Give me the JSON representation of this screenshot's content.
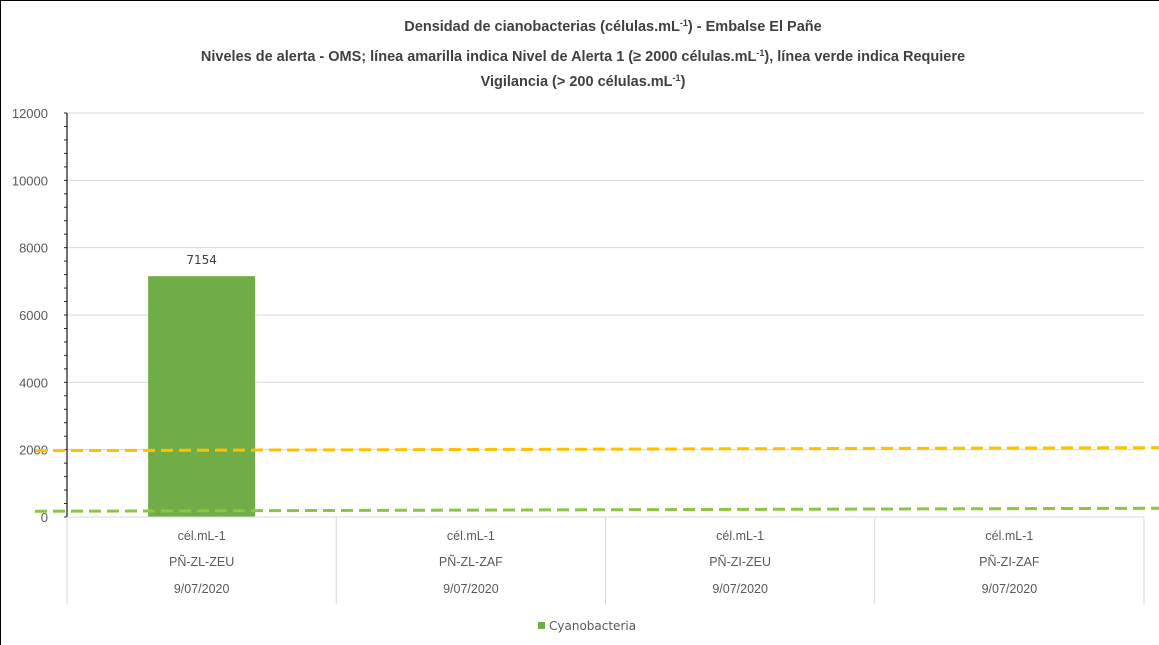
{
  "chart_data": {
    "type": "bar",
    "title": {
      "line1": {
        "main": "Densidad de cianobacterias (células.mL",
        "sup": "-1",
        "tail": ") - Embalse El Pañe"
      },
      "line2": {
        "main": "Niveles de alerta - OMS; línea amarilla indica Nivel de Alerta 1 (≥ 2000  células.mL",
        "sup": "-1",
        "tail": "), línea verde indica Requiere"
      },
      "line3": {
        "main": "Vigilancia (> 200 células.mL",
        "sup": "-1",
        "tail": ")"
      }
    },
    "categories": [
      {
        "unit": "cél.mL-1",
        "site": "PÑ-ZL-ZEU",
        "date": "9/07/2020"
      },
      {
        "unit": "cél.mL-1",
        "site": "PÑ-ZL-ZAF",
        "date": "9/07/2020"
      },
      {
        "unit": "cél.mL-1",
        "site": "PÑ-ZI-ZEU",
        "date": "9/07/2020"
      },
      {
        "unit": "cél.mL-1",
        "site": "PÑ-ZI-ZAF",
        "date": "9/07/2020"
      }
    ],
    "series": [
      {
        "name": "Cyanobacteria",
        "color": "#70ad47",
        "values": [
          7154,
          null,
          null,
          null
        ],
        "labels": [
          "7154",
          "",
          "",
          ""
        ]
      }
    ],
    "reference_lines": [
      {
        "value": 2000,
        "color": "#ffc000",
        "style": "dashed"
      },
      {
        "value": 200,
        "color": "#8cc63e",
        "style": "dashed"
      }
    ],
    "ylim": [
      0,
      12000
    ],
    "yticks": [
      "0",
      "2000",
      "4000",
      "6000",
      "8000",
      "10000",
      "12000"
    ],
    "grid": true,
    "legend_position": "bottom"
  }
}
